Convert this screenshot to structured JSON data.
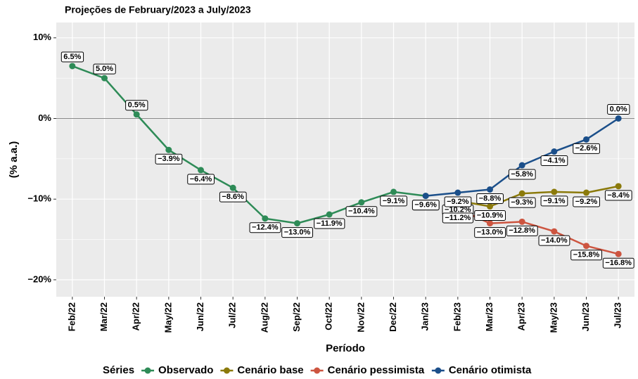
{
  "chart_data": {
    "type": "line",
    "title": "Projeções de February/2023 a July/2023",
    "x_label": "Período",
    "y_label": "(% a.a.)",
    "legend_title": "Séries",
    "legend": "bottom",
    "grid": true,
    "hline": 0,
    "categories": [
      "Feb/22",
      "Mar/22",
      "Apr/22",
      "May/22",
      "Jun/22",
      "Jul/22",
      "Aug/22",
      "Sep/22",
      "Oct/22",
      "Nov/22",
      "Dec/22",
      "Jan/23",
      "Feb/23",
      "Mar/23",
      "Apr/23",
      "May/23",
      "Jun/23",
      "Jul/23"
    ],
    "ylim": [
      -22.1,
      11.9
    ],
    "yticks": [
      {
        "value": -20,
        "label": "−20%"
      },
      {
        "value": -10,
        "label": "−10%"
      },
      {
        "value": 0,
        "label": "0%"
      },
      {
        "value": 10,
        "label": "10%"
      }
    ],
    "series": [
      {
        "name": "Observado",
        "color": "#2e8b57",
        "values": [
          6.5,
          5.0,
          0.5,
          -3.9,
          -6.4,
          -8.6,
          -12.4,
          -13.0,
          -11.9,
          -10.4,
          -9.1,
          -9.6,
          null,
          null,
          null,
          null,
          null,
          null
        ],
        "value_labels": [
          "6.5%",
          "5.0%",
          "0.5%",
          "−3.9%",
          "−6.4%",
          "−8.6%",
          "−12.4%",
          "−13.0%",
          "−11.9%",
          "−10.4%",
          "−9.1%",
          "−9.6%",
          null,
          null,
          null,
          null,
          null,
          null
        ]
      },
      {
        "name": "Cenário base",
        "color": "#8b7a0b",
        "values": [
          null,
          null,
          null,
          null,
          null,
          null,
          null,
          null,
          null,
          null,
          null,
          null,
          -10.2,
          -10.9,
          -9.3,
          -9.1,
          -9.2,
          -8.4
        ],
        "value_labels": [
          null,
          null,
          null,
          null,
          null,
          null,
          null,
          null,
          null,
          null,
          null,
          null,
          "−10.2%",
          "−10.9%",
          "−9.3%",
          "−9.1%",
          "−9.2%",
          "−8.4%"
        ]
      },
      {
        "name": "Cenário pessimista",
        "color": "#cd5540",
        "values": [
          null,
          null,
          null,
          null,
          null,
          null,
          null,
          null,
          null,
          null,
          null,
          null,
          -11.2,
          -13.0,
          -12.8,
          -14.0,
          -15.8,
          -16.8
        ],
        "value_labels": [
          null,
          null,
          null,
          null,
          null,
          null,
          null,
          null,
          null,
          null,
          null,
          null,
          "−11.2%",
          "−13.0%",
          "−12.8%",
          "−14.0%",
          "−15.8%",
          "−16.8%"
        ]
      },
      {
        "name": "Cenário otimista",
        "color": "#1b4f8a",
        "values": [
          null,
          null,
          null,
          null,
          null,
          null,
          null,
          null,
          null,
          null,
          null,
          -9.6,
          -9.2,
          -8.8,
          -5.8,
          -4.1,
          -2.6,
          0.0
        ],
        "value_labels": [
          null,
          null,
          null,
          null,
          null,
          null,
          null,
          null,
          null,
          null,
          null,
          "−9.6%",
          "−9.2%",
          "−8.8%",
          "−5.8%",
          "−4.1%",
          "−2.6%",
          "0.0%"
        ]
      }
    ]
  }
}
